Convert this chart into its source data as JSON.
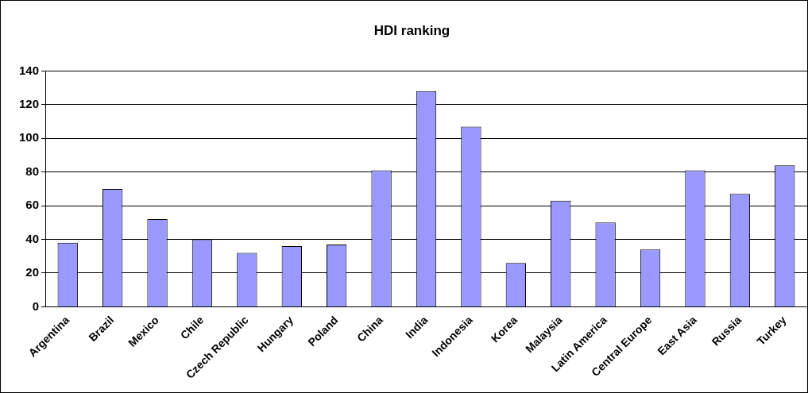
{
  "chart_data": {
    "type": "bar",
    "title": "HDI ranking",
    "categories": [
      "Argentina",
      "Brazil",
      "Mexico",
      "Chile",
      "Czech Republic",
      "Hungary",
      "Poland",
      "China",
      "India",
      "Indonesia",
      "Korea",
      "Malaysia",
      "Latin America",
      "Central Europe",
      "East Asia",
      "Russia",
      "Turkey"
    ],
    "values": [
      38,
      70,
      52,
      40,
      32,
      36,
      37,
      81,
      128,
      107,
      26,
      63,
      50,
      34,
      81,
      67,
      84
    ],
    "color": "#9999ff",
    "ylim": [
      0,
      140
    ],
    "yticks": [
      0,
      20,
      40,
      60,
      80,
      100,
      120,
      140
    ],
    "grid": "y",
    "legend": false
  }
}
